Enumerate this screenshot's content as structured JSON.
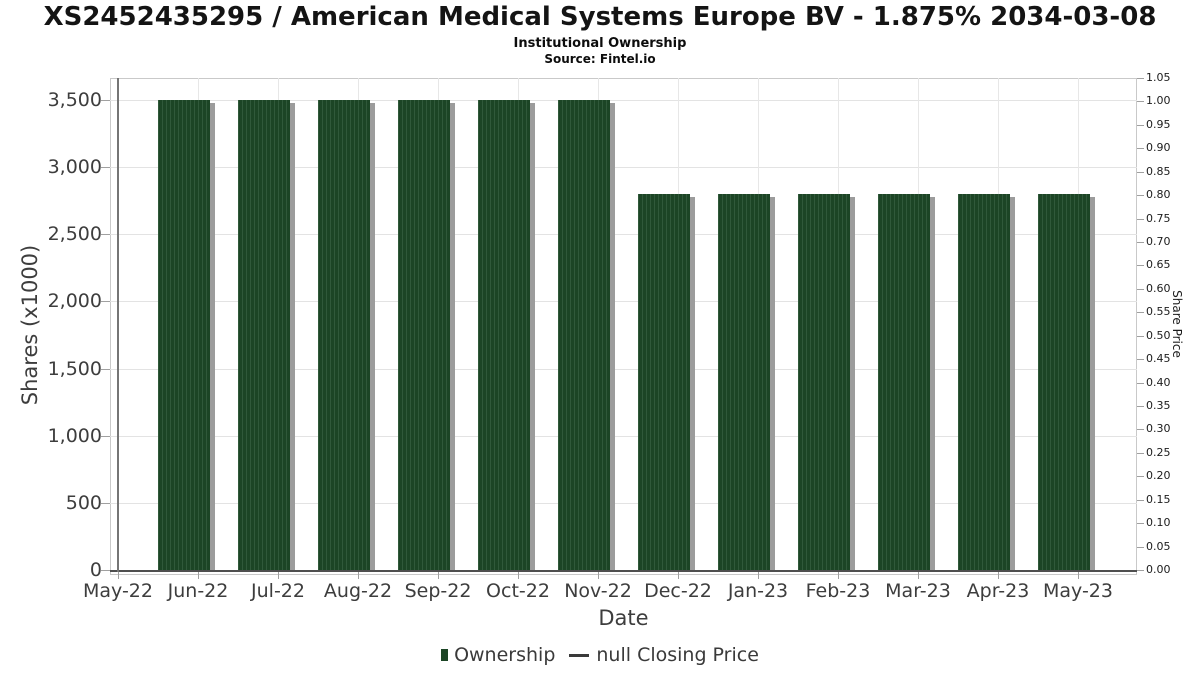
{
  "header": {
    "title": "XS2452435295 / American Medical Systems Europe BV - 1.875% 2034-03-08",
    "subtitle": "Institutional Ownership",
    "source": "Source: Fintel.io"
  },
  "chart_data": {
    "type": "bar",
    "title": "Institutional Ownership",
    "xlabel": "Date",
    "ylabel_left": "Shares (x1000)",
    "ylabel_right": "Share Price",
    "grid": true,
    "legend_position": "bottom",
    "categories": [
      "May-22",
      "Jun-22",
      "Jul-22",
      "Aug-22",
      "Sep-22",
      "Oct-22",
      "Nov-22",
      "Dec-22",
      "Jan-23",
      "Feb-23",
      "Mar-23",
      "Apr-23",
      "May-23"
    ],
    "series": [
      {
        "name": "Ownership",
        "type": "bar",
        "color": "#1c4525",
        "hatch_color": "#30593a",
        "shadow_color": "#9c9c9c",
        "values": [
          null,
          3500,
          3500,
          3500,
          3500,
          3500,
          3500,
          2800,
          2800,
          2800,
          2800,
          2800,
          2800
        ]
      },
      {
        "name": "null Closing Price",
        "type": "line",
        "color": "#3a3a3a",
        "values": [
          null,
          null,
          null,
          null,
          null,
          null,
          null,
          null,
          null,
          null,
          null,
          null,
          null
        ]
      }
    ],
    "left_axis": {
      "range": [
        0,
        3663
      ],
      "ticks": [
        {
          "v": 0,
          "label": "0"
        },
        {
          "v": 500,
          "label": "500"
        },
        {
          "v": 1000,
          "label": "1,000"
        },
        {
          "v": 1500,
          "label": "1,500"
        },
        {
          "v": 2000,
          "label": "2,000"
        },
        {
          "v": 2500,
          "label": "2,500"
        },
        {
          "v": 3000,
          "label": "3,000"
        },
        {
          "v": 3500,
          "label": "3,500"
        }
      ]
    },
    "right_axis": {
      "range": [
        0,
        1.05
      ],
      "ticks": [
        {
          "v": 0.0,
          "label": "0.00"
        },
        {
          "v": 0.05,
          "label": "0.05"
        },
        {
          "v": 0.1,
          "label": "0.10"
        },
        {
          "v": 0.15,
          "label": "0.15"
        },
        {
          "v": 0.2,
          "label": "0.20"
        },
        {
          "v": 0.25,
          "label": "0.25"
        },
        {
          "v": 0.3,
          "label": "0.30"
        },
        {
          "v": 0.35,
          "label": "0.35"
        },
        {
          "v": 0.4,
          "label": "0.40"
        },
        {
          "v": 0.45,
          "label": "0.45"
        },
        {
          "v": 0.5,
          "label": "0.50"
        },
        {
          "v": 0.55,
          "label": "0.55"
        },
        {
          "v": 0.6,
          "label": "0.60"
        },
        {
          "v": 0.65,
          "label": "0.65"
        },
        {
          "v": 0.7,
          "label": "0.70"
        },
        {
          "v": 0.75,
          "label": "0.75"
        },
        {
          "v": 0.8,
          "label": "0.80"
        },
        {
          "v": 0.85,
          "label": "0.85"
        },
        {
          "v": 0.9,
          "label": "0.90"
        },
        {
          "v": 0.95,
          "label": "0.95"
        },
        {
          "v": 1.0,
          "label": "1.00"
        },
        {
          "v": 1.05,
          "label": "1.05"
        }
      ]
    },
    "legend": [
      {
        "label": "Ownership",
        "marker": "square"
      },
      {
        "label": "null Closing Price",
        "marker": "line"
      }
    ]
  }
}
